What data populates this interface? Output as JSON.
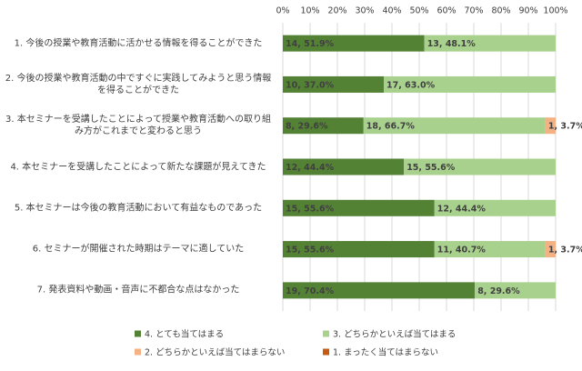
{
  "chart_data": {
    "type": "stacked-barh",
    "categories": [
      "1. 今後の授業や教育活動に活かせる情報を得ることができた",
      "2. 今後の授業や教育活動の中ですぐに実践してみようと思う情報を得ることができた",
      "3. 本セミナーを受講したことによって授業や教育活動への取り組み方がこれまでと変わると思う",
      "4. 本セミナーを受講したことによって新たな課題が見えてきた",
      "5. 本セミナーは今後の教育活動において有益なものであった",
      "6. セミナーが開催された時期はテーマに適していた",
      "7. 発表資料や動画・音声に不都合な点はなかった"
    ],
    "series": [
      {
        "name": "4. とても当てはまる",
        "color": "#548235",
        "values": [
          51.9,
          37.0,
          29.6,
          44.4,
          55.6,
          55.6,
          70.4
        ],
        "value_labels": [
          "14, 51.9%",
          "10, 37.0%",
          "8, 29.6%",
          "12, 44.4%",
          "15, 55.6%",
          "15, 55.6%",
          "19, 70.4%"
        ]
      },
      {
        "name": "3. どちらかといえば当てはまる",
        "color": "#a9d18e",
        "values": [
          48.1,
          63.0,
          66.7,
          55.6,
          44.4,
          40.7,
          29.6
        ],
        "value_labels": [
          "13, 48.1%",
          "17, 63.0%",
          "18, 66.7%",
          "15, 55.6%",
          "12, 44.4%",
          "11, 40.7%",
          "8, 29.6%"
        ]
      },
      {
        "name": "2. どちらかといえば当てはまらない",
        "color": "#f4b183",
        "values": [
          0,
          0,
          3.7,
          0,
          0,
          3.7,
          0
        ],
        "value_labels": [
          null,
          null,
          "1, 3.7%",
          null,
          null,
          "1, 3.7%",
          null
        ]
      },
      {
        "name": "1. まったく当てはまらない",
        "color": "#c55a11",
        "values": [
          0,
          0,
          0,
          0,
          0,
          0,
          0
        ],
        "value_labels": [
          null,
          null,
          null,
          null,
          null,
          null,
          null
        ]
      }
    ],
    "xlim": [
      0,
      100
    ],
    "xticks": [
      {
        "value": 0,
        "label": "0%"
      },
      {
        "value": 10,
        "label": "10%"
      },
      {
        "value": 20,
        "label": "20%"
      },
      {
        "value": 30,
        "label": "30%"
      },
      {
        "value": 40,
        "label": "40%"
      },
      {
        "value": 50,
        "label": "50%"
      },
      {
        "value": 60,
        "label": "60%"
      },
      {
        "value": 70,
        "label": "70%"
      },
      {
        "value": 80,
        "label": "80%"
      },
      {
        "value": 90,
        "label": "90%"
      },
      {
        "value": 100,
        "label": "100%"
      }
    ],
    "grid": true,
    "legend": "bottom"
  }
}
